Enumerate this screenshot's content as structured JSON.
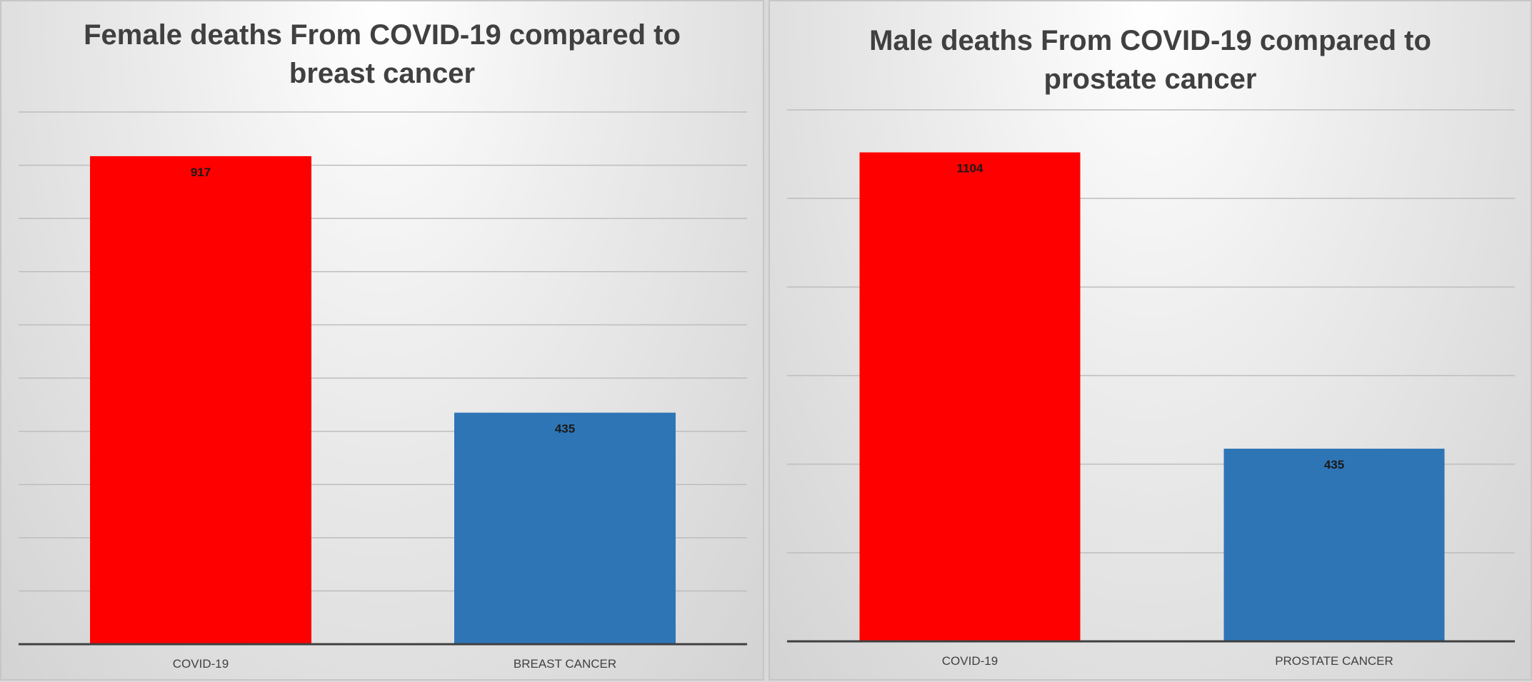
{
  "chart_data": [
    {
      "type": "bar",
      "title": "Female deaths From COVID-19 compared to breast cancer",
      "xlabel": "",
      "ylabel": "",
      "categories": [
        "COVID-19",
        "BREAST CANCER"
      ],
      "values": [
        917,
        435
      ],
      "colors": [
        "#ff0000",
        "#2e75b6"
      ],
      "ylim": [
        0,
        1000
      ],
      "grid": true,
      "data_labels": true
    },
    {
      "type": "bar",
      "title": "Male deaths From COVID-19 compared to prostate cancer",
      "xlabel": "",
      "ylabel": "",
      "categories": [
        "COVID-19",
        "PROSTATE CANCER"
      ],
      "values": [
        1104,
        435
      ],
      "colors": [
        "#ff0000",
        "#2e75b6"
      ],
      "ylim": [
        0,
        1200
      ],
      "grid": true,
      "data_labels": true
    }
  ]
}
